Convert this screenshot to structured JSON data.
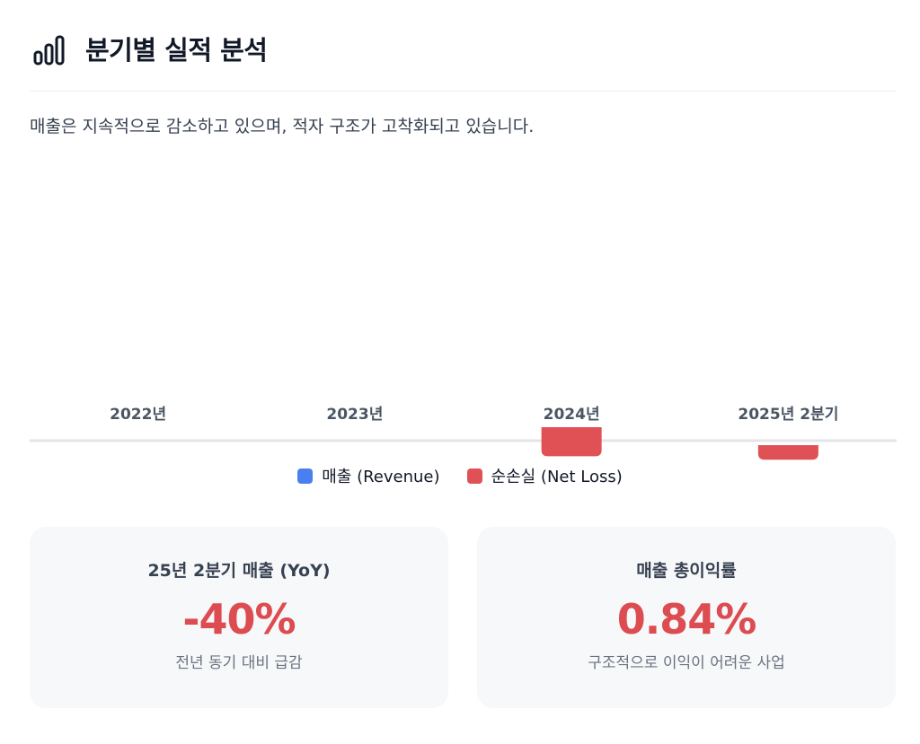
{
  "header": {
    "title": "분기별 실적 분석",
    "icon": "bar-chart-icon"
  },
  "summary": "매출은 지속적으로 감소하고 있으며, 적자 구조가 고착화되고 있습니다.",
  "chart_data": {
    "type": "bar",
    "categories": [
      "2022년",
      "2023년",
      "2024년",
      "2025년 2분기"
    ],
    "series": [
      {
        "name": "매출 (Revenue)",
        "color": "#4a7ff0",
        "values": [
          0,
          0,
          0,
          0
        ]
      },
      {
        "name": "순손실 (Net Loss)",
        "color": "#e05156",
        "values": [
          0,
          0,
          -16,
          -7
        ]
      }
    ],
    "xlabel": "",
    "ylabel": "",
    "grid": false,
    "legend_position": "bottom"
  },
  "legend": {
    "revenue": "매출 (Revenue)",
    "net_loss": "순손실 (Net Loss)"
  },
  "cards": [
    {
      "title": "25년 2분기 매출 (YoY)",
      "value": "-40%",
      "desc": "전년 동기 대비 급감"
    },
    {
      "title": "매출 총이익률",
      "value": "0.84%",
      "desc": "구조적으로 이익이 어려운 사업"
    }
  ],
  "colors": {
    "revenue": "#4a7ff0",
    "loss": "#e05156",
    "accent_value": "#dc4c50"
  }
}
